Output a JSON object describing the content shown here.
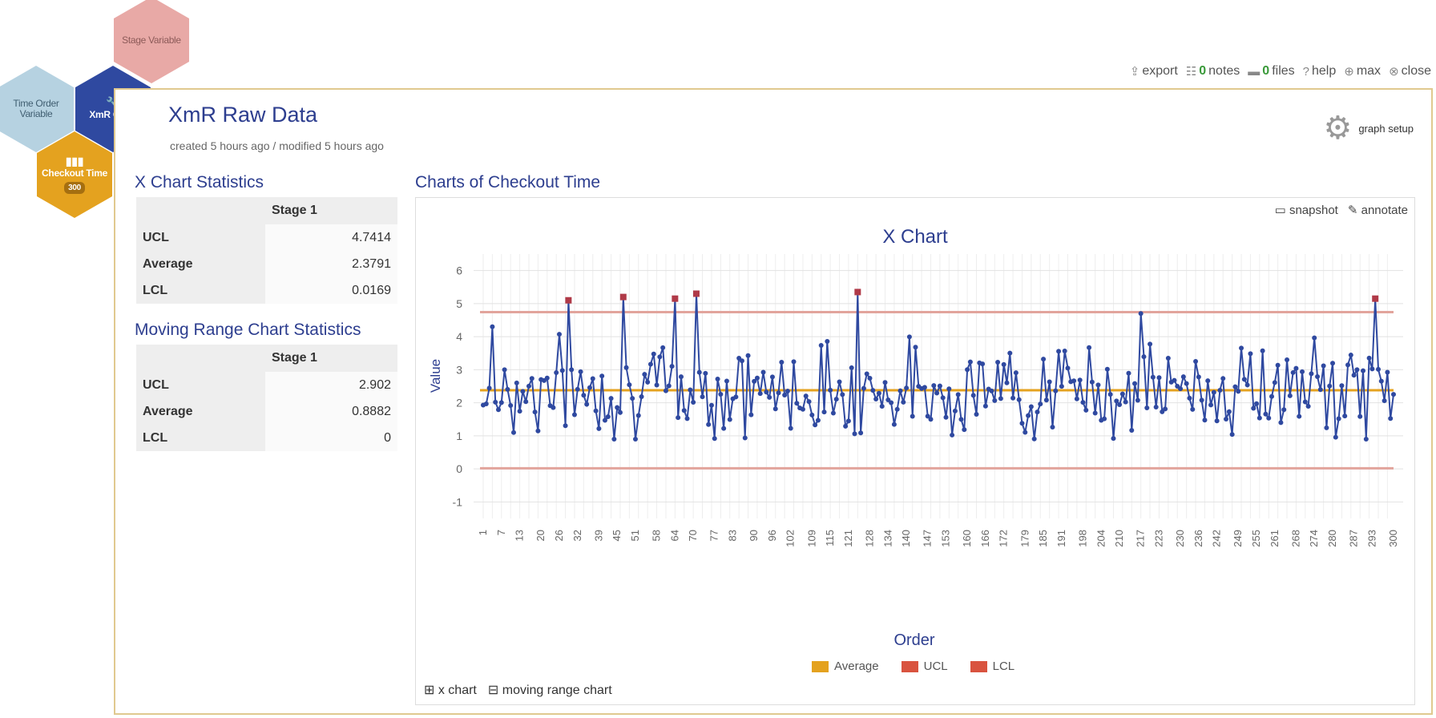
{
  "nav": {
    "stage_variable": "Stage Variable",
    "time_order_variable": "Time Order Variable",
    "xmr_chart": "XmR Chart",
    "checkout_time": "Checkout Time",
    "checkout_count": "300"
  },
  "toolbar": {
    "export": "export",
    "notes_count": "0",
    "notes": "notes",
    "files_count": "0",
    "files": "files",
    "help": "help",
    "max": "max",
    "close": "close"
  },
  "header": {
    "title": "XmR Raw Data",
    "meta": "created 5 hours ago / modified 5 hours ago",
    "graph_setup": "graph setup"
  },
  "x_stats": {
    "title": "X Chart Statistics",
    "stage": "Stage 1",
    "rows": [
      {
        "label": "UCL",
        "value": "4.7414"
      },
      {
        "label": "Average",
        "value": "2.3791"
      },
      {
        "label": "LCL",
        "value": "0.0169"
      }
    ]
  },
  "mr_stats": {
    "title": "Moving Range Chart Statistics",
    "stage": "Stage 1",
    "rows": [
      {
        "label": "UCL",
        "value": "2.902"
      },
      {
        "label": "Average",
        "value": "0.8882"
      },
      {
        "label": "LCL",
        "value": "0"
      }
    ]
  },
  "chart_panel": {
    "title": "Charts of Checkout Time",
    "snapshot": "snapshot",
    "annotate": "annotate",
    "tab_x": "x chart",
    "tab_mr": "moving range chart"
  },
  "colors": {
    "series": "#2f49a0",
    "average": "#e4a21f",
    "limits": "#e8a9a6",
    "out_of_control": "#c0392b"
  },
  "chart_data": {
    "type": "line",
    "title": "X Chart",
    "xlabel": "Order",
    "ylabel": "Value",
    "ylim": [
      -1.5,
      6.5
    ],
    "yticks": [
      -1,
      0,
      1,
      2,
      3,
      4,
      5,
      6
    ],
    "xticks": [
      1,
      7,
      13,
      20,
      26,
      32,
      39,
      45,
      51,
      58,
      64,
      70,
      77,
      83,
      90,
      96,
      102,
      109,
      115,
      121,
      128,
      134,
      140,
      147,
      153,
      160,
      166,
      172,
      179,
      185,
      191,
      198,
      204,
      210,
      217,
      223,
      230,
      236,
      242,
      249,
      255,
      261,
      268,
      274,
      280,
      287,
      293,
      300
    ],
    "average": 2.3791,
    "ucl": 4.7414,
    "lcl": 0.0169,
    "legend": [
      "Average",
      "UCL",
      "LCL"
    ],
    "n_points": 300,
    "flagged_points": [
      {
        "x": 29,
        "y": 5.1
      },
      {
        "x": 47,
        "y": 5.2
      },
      {
        "x": 64,
        "y": 5.15
      },
      {
        "x": 71,
        "y": 5.3
      },
      {
        "x": 124,
        "y": 5.35
      },
      {
        "x": 294,
        "y": 5.15
      }
    ]
  }
}
